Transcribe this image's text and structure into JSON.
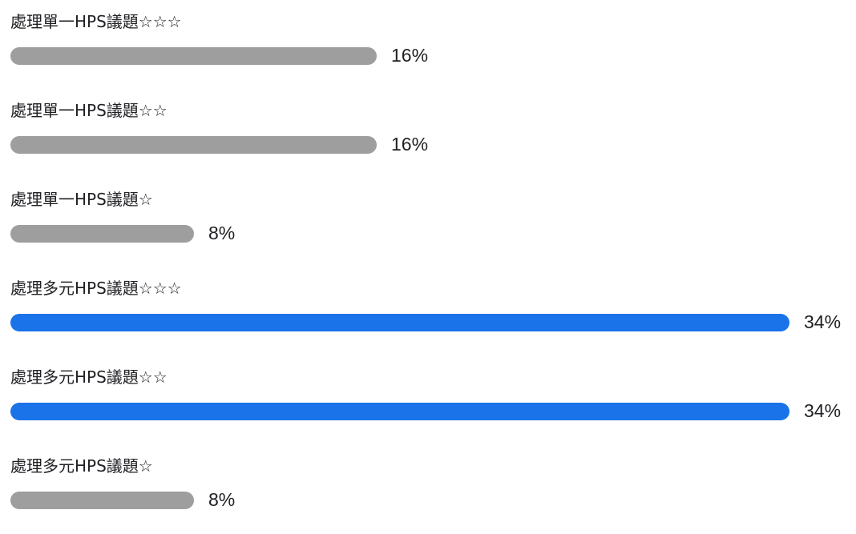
{
  "chart_data": {
    "type": "bar",
    "orientation": "horizontal",
    "categories": [
      "處理單一HPS議題☆☆☆",
      "處理單一HPS議題☆☆",
      "處理單一HPS議題☆",
      "處理多元HPS議題☆☆☆",
      "處理多元HPS議題☆☆",
      "處理多元HPS議題☆"
    ],
    "values": [
      16,
      16,
      8,
      34,
      34,
      8
    ],
    "value_labels": [
      "16%",
      "16%",
      "8%",
      "34%",
      "34%",
      "8%"
    ],
    "unit": "%",
    "highlighted": [
      false,
      false,
      false,
      true,
      true,
      false
    ],
    "colors": {
      "default_bar": "#9e9e9e",
      "highlight_bar": "#1a73e8"
    },
    "grid": false,
    "legend": "none"
  }
}
